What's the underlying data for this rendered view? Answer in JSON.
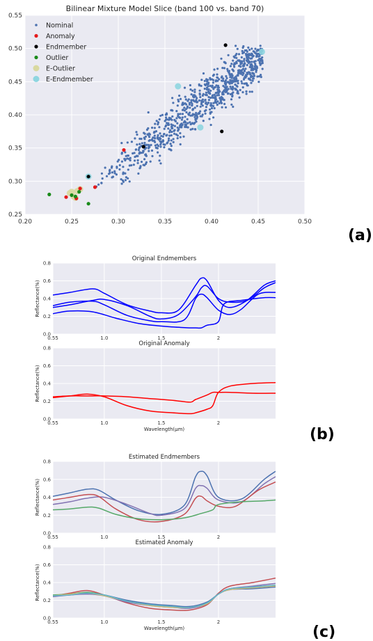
{
  "panels": {
    "a": {
      "label": "(a)"
    },
    "b": {
      "label": "(b)"
    },
    "c": {
      "label": "(c)"
    }
  },
  "chart_data": [
    {
      "id": "scatter",
      "type": "scatter",
      "title": "Bilinear Mixture Model Slice (band 100 vs. band 70)",
      "xlabel": "",
      "ylabel": "",
      "xlim": [
        0.2,
        0.5
      ],
      "ylim": [
        0.25,
        0.55
      ],
      "xticks": [
        "0.20",
        "0.25",
        "0.30",
        "0.35",
        "0.40",
        "0.45",
        "0.50"
      ],
      "yticks": [
        "0.25",
        "0.30",
        "0.35",
        "0.40",
        "0.45",
        "0.50",
        "0.55"
      ],
      "grid": true,
      "legend_position": "top-left",
      "nominal_cloud": {
        "count": 900,
        "x_range": [
          0.26,
          0.455
        ],
        "trend": "linear, ~0.26 rise per 0.19 x",
        "spread_y": 0.018
      },
      "series": [
        {
          "name": "Nominal",
          "color": "#4c72b0",
          "marker": "small-dot"
        },
        {
          "name": "Anomaly",
          "color": "#e41a1c",
          "marker": "dot",
          "points": [
            [
              0.306,
              0.347
            ],
            [
              0.275,
              0.291
            ],
            [
              0.259,
              0.289
            ],
            [
              0.244,
              0.276
            ],
            [
              0.255,
              0.274
            ]
          ]
        },
        {
          "name": "Endmember",
          "color": "#000000",
          "marker": "dot",
          "points": [
            [
              0.415,
              0.505
            ],
            [
              0.327,
              0.352
            ],
            [
              0.411,
              0.375
            ],
            [
              0.268,
              0.307
            ]
          ]
        },
        {
          "name": "Outlier",
          "color": "#1a8a1a",
          "marker": "dot",
          "points": [
            [
              0.226,
              0.28
            ],
            [
              0.268,
              0.266
            ],
            [
              0.25,
              0.279
            ],
            [
              0.258,
              0.284
            ],
            [
              0.254,
              0.277
            ]
          ]
        },
        {
          "name": "E-Outlier",
          "color": "#d9d9a0",
          "marker": "large-dot",
          "points": [
            [
              0.248,
              0.282
            ],
            [
              0.252,
              0.277
            ],
            [
              0.256,
              0.285
            ],
            [
              0.259,
              0.288
            ],
            [
              0.254,
              0.275
            ],
            [
              0.25,
              0.284
            ]
          ]
        },
        {
          "name": "E-Endmember",
          "color": "#8fd6e0",
          "marker": "large-dot",
          "points": [
            [
              0.268,
              0.307
            ],
            [
              0.364,
              0.443
            ],
            [
              0.388,
              0.381
            ],
            [
              0.454,
              0.495
            ]
          ]
        }
      ]
    },
    {
      "id": "orig-endmembers",
      "type": "line",
      "title": "Original Endmembers",
      "xlabel": "",
      "ylabel": "Reflectance(%)",
      "xlim": [
        0.55,
        2.5
      ],
      "ylim": [
        0.0,
        0.8
      ],
      "xticks": [
        {
          "v": 0.55,
          "t": "0.55"
        },
        {
          "v": 1.0,
          "t": "1.0"
        },
        {
          "v": 1.5,
          "t": "1.5"
        },
        {
          "v": 2.0,
          "t": "2"
        }
      ],
      "yticks": [
        {
          "v": 0.0,
          "t": "0.0"
        },
        {
          "v": 0.2,
          "t": "0.2"
        },
        {
          "v": 0.4,
          "t": "0.4"
        },
        {
          "v": 0.6,
          "t": "0.6"
        },
        {
          "v": 0.8,
          "t": "0.8"
        }
      ],
      "grid": true,
      "series": [
        {
          "color": "#0000ff",
          "x": [
            0.55,
            0.7,
            0.9,
            1.0,
            1.2,
            1.4,
            1.5,
            1.65,
            1.8,
            1.85,
            1.9,
            2.0,
            2.1,
            2.25,
            2.4,
            2.5
          ],
          "y": [
            0.44,
            0.47,
            0.51,
            0.46,
            0.33,
            0.26,
            0.24,
            0.27,
            0.55,
            0.63,
            0.6,
            0.38,
            0.3,
            0.38,
            0.55,
            0.6
          ]
        },
        {
          "color": "#0000ff",
          "x": [
            0.55,
            0.7,
            0.9,
            1.0,
            1.2,
            1.4,
            1.5,
            1.7,
            1.8,
            1.85,
            1.9,
            2.0,
            2.1,
            2.2,
            2.35,
            2.5
          ],
          "y": [
            0.32,
            0.36,
            0.37,
            0.33,
            0.21,
            0.15,
            0.14,
            0.16,
            0.4,
            0.45,
            0.41,
            0.27,
            0.22,
            0.28,
            0.45,
            0.47
          ]
        },
        {
          "color": "#0000ff",
          "x": [
            0.55,
            0.7,
            0.9,
            1.0,
            1.2,
            1.4,
            1.5,
            1.65,
            1.8,
            1.85,
            1.9,
            2.0,
            2.1,
            2.25,
            2.4,
            2.5
          ],
          "y": [
            0.3,
            0.33,
            0.38,
            0.39,
            0.32,
            0.2,
            0.17,
            0.22,
            0.42,
            0.52,
            0.54,
            0.4,
            0.36,
            0.38,
            0.52,
            0.58
          ]
        },
        {
          "color": "#0000ff",
          "x": [
            0.55,
            0.7,
            0.9,
            1.1,
            1.3,
            1.5,
            1.6,
            1.75,
            1.8,
            1.85,
            1.9,
            2.0,
            2.05,
            2.2,
            2.4,
            2.5
          ],
          "y": [
            0.23,
            0.26,
            0.25,
            0.18,
            0.12,
            0.09,
            0.08,
            0.07,
            0.07,
            0.07,
            0.1,
            0.14,
            0.34,
            0.38,
            0.41,
            0.41
          ]
        }
      ]
    },
    {
      "id": "orig-anomaly",
      "type": "line",
      "title": "Original Anomaly",
      "xlabel": "Wavelength(μm)",
      "ylabel": "Reflectance(%)",
      "xlim": [
        0.55,
        2.5
      ],
      "ylim": [
        0.0,
        0.8
      ],
      "xticks": [
        {
          "v": 0.55,
          "t": "0.55"
        },
        {
          "v": 1.0,
          "t": "1.0"
        },
        {
          "v": 1.5,
          "t": "1.5"
        },
        {
          "v": 2.0,
          "t": "2"
        }
      ],
      "yticks": [
        {
          "v": 0.0,
          "t": "0.0"
        },
        {
          "v": 0.2,
          "t": "0.2"
        },
        {
          "v": 0.4,
          "t": "0.4"
        },
        {
          "v": 0.6,
          "t": "0.6"
        },
        {
          "v": 0.8,
          "t": "0.8"
        }
      ],
      "grid": true,
      "series": [
        {
          "color": "#ff0000",
          "x": [
            0.55,
            0.7,
            0.85,
            1.0,
            1.2,
            1.4,
            1.6,
            1.75,
            1.8,
            1.9,
            1.95,
            2.0,
            2.1,
            2.3,
            2.5
          ],
          "y": [
            0.25,
            0.26,
            0.26,
            0.26,
            0.25,
            0.23,
            0.21,
            0.19,
            0.22,
            0.27,
            0.3,
            0.3,
            0.3,
            0.29,
            0.29
          ]
        },
        {
          "color": "#ff0000",
          "x": [
            0.55,
            0.7,
            0.85,
            1.0,
            1.2,
            1.4,
            1.6,
            1.75,
            1.8,
            1.9,
            1.95,
            2.0,
            2.1,
            2.3,
            2.5
          ],
          "y": [
            0.24,
            0.26,
            0.28,
            0.25,
            0.15,
            0.09,
            0.07,
            0.06,
            0.07,
            0.11,
            0.15,
            0.3,
            0.37,
            0.4,
            0.41
          ]
        }
      ]
    },
    {
      "id": "est-endmembers",
      "type": "line",
      "title": "Estimated Endmembers",
      "xlabel": "",
      "ylabel": "Reflectance(%)",
      "xlim": [
        0.55,
        2.5
      ],
      "ylim": [
        0.0,
        0.8
      ],
      "xticks": [
        {
          "v": 0.55,
          "t": "0.55"
        },
        {
          "v": 1.0,
          "t": "1.0"
        },
        {
          "v": 1.5,
          "t": "1.5"
        },
        {
          "v": 2.0,
          "t": "2"
        }
      ],
      "yticks": [
        {
          "v": 0.0,
          "t": "0.0"
        },
        {
          "v": 0.2,
          "t": "0.2"
        },
        {
          "v": 0.4,
          "t": "0.4"
        },
        {
          "v": 0.6,
          "t": "0.6"
        },
        {
          "v": 0.8,
          "t": "0.8"
        }
      ],
      "grid": true,
      "series": [
        {
          "color": "#4c72b0",
          "x": [
            0.55,
            0.7,
            0.85,
            0.95,
            1.1,
            1.3,
            1.5,
            1.7,
            1.8,
            1.85,
            1.9,
            2.0,
            2.2,
            2.4,
            2.5
          ],
          "y": [
            0.41,
            0.45,
            0.49,
            0.48,
            0.37,
            0.25,
            0.21,
            0.31,
            0.63,
            0.69,
            0.64,
            0.4,
            0.38,
            0.6,
            0.69
          ]
        },
        {
          "color": "#8172b2",
          "x": [
            0.55,
            0.7,
            0.85,
            1.0,
            1.2,
            1.4,
            1.5,
            1.7,
            1.8,
            1.85,
            1.9,
            2.0,
            2.2,
            2.4,
            2.5
          ],
          "y": [
            0.32,
            0.35,
            0.39,
            0.4,
            0.32,
            0.22,
            0.2,
            0.27,
            0.5,
            0.53,
            0.5,
            0.37,
            0.35,
            0.55,
            0.63
          ]
        },
        {
          "color": "#c44e52",
          "x": [
            0.55,
            0.7,
            0.85,
            0.95,
            1.1,
            1.3,
            1.5,
            1.7,
            1.8,
            1.85,
            1.9,
            2.0,
            2.15,
            2.35,
            2.5
          ],
          "y": [
            0.37,
            0.4,
            0.43,
            0.41,
            0.27,
            0.15,
            0.13,
            0.21,
            0.39,
            0.41,
            0.36,
            0.3,
            0.3,
            0.48,
            0.57
          ]
        },
        {
          "color": "#55a868",
          "x": [
            0.55,
            0.7,
            0.85,
            0.95,
            1.1,
            1.3,
            1.5,
            1.7,
            1.85,
            1.95,
            2.0,
            2.2,
            2.4,
            2.5
          ],
          "y": [
            0.26,
            0.27,
            0.29,
            0.28,
            0.21,
            0.16,
            0.15,
            0.17,
            0.22,
            0.26,
            0.32,
            0.35,
            0.36,
            0.37
          ]
        }
      ]
    },
    {
      "id": "est-anomaly",
      "type": "line",
      "title": "Estimated Anomaly",
      "xlabel": "Wavelength(μm)",
      "ylabel": "Reflectance(%)",
      "xlim": [
        0.55,
        2.5
      ],
      "ylim": [
        0.0,
        0.8
      ],
      "xticks": [
        {
          "v": 0.55,
          "t": "0.55"
        },
        {
          "v": 1.0,
          "t": "1.0"
        },
        {
          "v": 1.5,
          "t": "1.5"
        },
        {
          "v": 2.0,
          "t": "2"
        }
      ],
      "yticks": [
        {
          "v": 0.0,
          "t": "0.0"
        },
        {
          "v": 0.2,
          "t": "0.2"
        },
        {
          "v": 0.4,
          "t": "0.4"
        },
        {
          "v": 0.6,
          "t": "0.6"
        },
        {
          "v": 0.8,
          "t": "0.8"
        }
      ],
      "grid": true,
      "series": [
        {
          "color": "#c44e52",
          "x": [
            0.55,
            0.7,
            0.85,
            1.0,
            1.2,
            1.4,
            1.6,
            1.75,
            1.9,
            2.0,
            2.1,
            2.3,
            2.5
          ],
          "y": [
            0.25,
            0.28,
            0.31,
            0.26,
            0.17,
            0.11,
            0.09,
            0.09,
            0.15,
            0.28,
            0.36,
            0.4,
            0.45
          ]
        },
        {
          "color": "#4c72b0",
          "x": [
            0.55,
            0.7,
            0.85,
            1.0,
            1.2,
            1.4,
            1.6,
            1.75,
            1.9,
            2.0,
            2.1,
            2.3,
            2.5
          ],
          "y": [
            0.25,
            0.26,
            0.28,
            0.26,
            0.2,
            0.16,
            0.14,
            0.13,
            0.18,
            0.27,
            0.32,
            0.33,
            0.35
          ]
        },
        {
          "color": "#55a868",
          "x": [
            0.55,
            0.7,
            0.85,
            1.0,
            1.2,
            1.4,
            1.6,
            1.75,
            1.9,
            2.0,
            2.1,
            2.3,
            2.5
          ],
          "y": [
            0.26,
            0.27,
            0.29,
            0.26,
            0.19,
            0.15,
            0.13,
            0.12,
            0.17,
            0.27,
            0.33,
            0.35,
            0.37
          ]
        },
        {
          "color": "#8172b2",
          "x": [
            0.55,
            0.7,
            0.85,
            1.0,
            1.2,
            1.4,
            1.6,
            1.75,
            1.9,
            2.0,
            2.1,
            2.3,
            2.5
          ],
          "y": [
            0.24,
            0.26,
            0.27,
            0.25,
            0.18,
            0.14,
            0.12,
            0.11,
            0.16,
            0.27,
            0.33,
            0.36,
            0.39
          ]
        },
        {
          "color": "#ccb974",
          "x": [
            0.55,
            0.7,
            0.85,
            1.0,
            1.2,
            1.4,
            1.6,
            1.75,
            1.9,
            2.0,
            2.1,
            2.3,
            2.5
          ],
          "y": [
            0.25,
            0.27,
            0.28,
            0.25,
            0.19,
            0.14,
            0.12,
            0.12,
            0.16,
            0.27,
            0.32,
            0.34,
            0.36
          ]
        },
        {
          "color": "#64b5cd",
          "x": [
            0.55,
            0.7,
            0.85,
            1.0,
            1.2,
            1.4,
            1.6,
            1.75,
            1.9,
            2.0,
            2.1,
            2.3,
            2.5
          ],
          "y": [
            0.25,
            0.26,
            0.28,
            0.26,
            0.19,
            0.15,
            0.13,
            0.12,
            0.17,
            0.27,
            0.33,
            0.35,
            0.37
          ]
        }
      ]
    }
  ]
}
